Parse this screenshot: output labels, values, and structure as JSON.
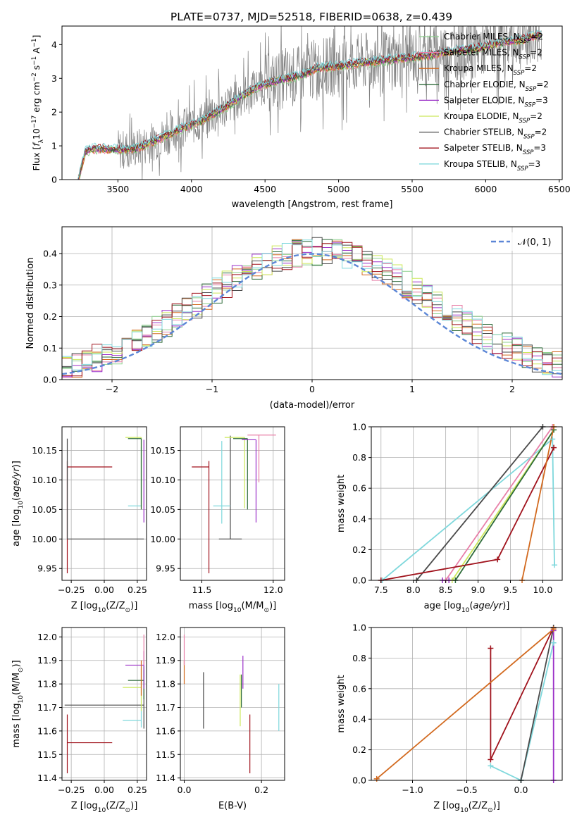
{
  "figure_title": "PLATE=0737, MJD=52518, FIBERID=0638, z=0.439",
  "colors": {
    "chabrier_miles": "#8fd18f",
    "salpeter_miles": "#e87fa8",
    "kroupa_miles": "#d2691e",
    "chabrier_elodie": "#2e6b3a",
    "salpeter_elodie": "#9b30c8",
    "kroupa_elodie": "#cce85a",
    "chabrier_stelib": "#4a4a4a",
    "salpeter_stelib": "#a0121c",
    "kroupa_stelib": "#7fd8dc",
    "data_spectrum": "#7f7f7f",
    "gaussian": "#5b86d6",
    "grid": "#b0b0b0"
  },
  "legend_spectrum": [
    {
      "key": "chabrier_miles",
      "label": "Chabrier MILES, N",
      "sub": "SSP",
      "tail": "=2"
    },
    {
      "key": "salpeter_miles",
      "label": "Salpeter MILES, N",
      "sub": "SSP",
      "tail": "=2"
    },
    {
      "key": "kroupa_miles",
      "label": "Kroupa MILES, N",
      "sub": "SSP",
      "tail": "=2"
    },
    {
      "key": "chabrier_elodie",
      "label": "Chabrier ELODIE, N",
      "sub": "SSP",
      "tail": "=2"
    },
    {
      "key": "salpeter_elodie",
      "label": "Salpeter ELODIE, N",
      "sub": "SSP",
      "tail": "=3"
    },
    {
      "key": "kroupa_elodie",
      "label": "Kroupa ELODIE, N",
      "sub": "SSP",
      "tail": "=2"
    },
    {
      "key": "chabrier_stelib",
      "label": "Chabrier STELIB, N",
      "sub": "SSP",
      "tail": "=2"
    },
    {
      "key": "salpeter_stelib",
      "label": "Salpeter STELIB, N",
      "sub": "SSP",
      "tail": "=3"
    },
    {
      "key": "kroupa_stelib",
      "label": "Kroupa STELIB, N",
      "sub": "SSP",
      "tail": "=3"
    }
  ],
  "legend_gauss": {
    "label": "𝒩(0, 1)"
  },
  "chart_data": [
    {
      "id": "spectrum",
      "type": "line",
      "xlabel": "wavelength [Angstrom, rest frame]",
      "ylabel_parts": [
        "Flux [",
        "f",
        "λ",
        "10",
        "−17",
        " erg cm",
        "−2",
        " s",
        "−1",
        " A",
        "−1",
        "]"
      ],
      "xlim": [
        3120,
        6520
      ],
      "ylim": [
        0,
        4.55
      ],
      "xticks": [
        3500,
        4000,
        4500,
        5000,
        5500,
        6000,
        6500
      ],
      "yticks": [
        0,
        1,
        2,
        3,
        4
      ],
      "model_continuum": {
        "x": [
          3230,
          3280,
          3350,
          3450,
          3550,
          3650,
          3750,
          3850,
          3950,
          4050,
          4150,
          4250,
          4350,
          4450,
          4550,
          4650,
          4750,
          4850,
          4950,
          5050,
          5150,
          5250,
          5350,
          5450,
          5550,
          5650,
          5750,
          5850,
          5950,
          6050,
          6150,
          6250,
          6380
        ],
        "y": [
          0.0,
          0.85,
          0.92,
          0.9,
          0.88,
          0.95,
          1.15,
          1.35,
          1.55,
          1.7,
          1.95,
          2.2,
          2.5,
          2.75,
          2.9,
          3.0,
          3.1,
          3.3,
          3.35,
          3.4,
          3.45,
          3.5,
          3.55,
          3.6,
          3.65,
          3.7,
          3.8,
          3.85,
          3.9,
          4.0,
          4.1,
          4.15,
          4.3
        ]
      }
    },
    {
      "id": "residuals",
      "type": "histogram",
      "xlabel": "(data-model)/error",
      "ylabel": "Normed distribution",
      "xlim": [
        -2.5,
        2.5
      ],
      "ylim": [
        0,
        0.485
      ],
      "xticks": [
        -2,
        -1,
        0,
        1,
        2
      ],
      "yticks": [
        0.0,
        0.1,
        0.2,
        0.3,
        0.4
      ],
      "bin_width": 0.1,
      "gaussian": {
        "mean": 0,
        "sigma": 1
      }
    },
    {
      "id": "age_vs_Z",
      "type": "scatter",
      "xlabel_parts": [
        "Z [log",
        "10",
        "(Z/Z",
        "⊙",
        ")]"
      ],
      "ylabel_parts": [
        "age  [log",
        "10",
        "(",
        "age/yr",
        ")]"
      ],
      "xlim": [
        -0.32,
        0.32
      ],
      "ylim": [
        9.93,
        10.19
      ],
      "xticks": [
        -0.25,
        0.0,
        0.25
      ],
      "xticklabels": [
        "−0.25",
        "0.00",
        "0.25"
      ],
      "yticks": [
        9.95,
        10.0,
        10.05,
        10.1,
        10.15
      ],
      "points": [
        {
          "key": "salpeter_stelib",
          "x": -0.28,
          "y": 10.122,
          "xerr": [
            0.0,
            0.34
          ],
          "yerr": [
            0.18,
            0.01
          ]
        },
        {
          "key": "chabrier_stelib",
          "x": -0.28,
          "y": 10.0,
          "xerr": [
            0.0,
            0.58
          ],
          "yerr": [
            0.0,
            0.17
          ]
        },
        {
          "key": "kroupa_stelib",
          "x": 0.28,
          "y": 10.056,
          "xerr": [
            0.1,
            0.0
          ],
          "yerr": [
            0.0,
            0.1
          ]
        },
        {
          "key": "kroupa_elodie",
          "x": 0.28,
          "y": 10.172,
          "xerr": [
            0.12,
            0.0
          ],
          "yerr": [
            0.12,
            0.0
          ]
        },
        {
          "key": "chabrier_elodie",
          "x": 0.28,
          "y": 10.17,
          "xerr": [
            0.1,
            0.0
          ],
          "yerr": [
            0.12,
            0.0
          ]
        },
        {
          "key": "salpeter_elodie",
          "x": 0.3,
          "y": 10.168,
          "xerr": [
            0.0,
            0.0
          ],
          "yerr": [
            0.14,
            0.0
          ]
        }
      ]
    },
    {
      "id": "age_vs_mass",
      "type": "scatter",
      "xlabel_parts": [
        "mass [log",
        "10",
        "(M/M",
        "⊙",
        ")]"
      ],
      "xlim": [
        11.35,
        12.08
      ],
      "ylim": [
        9.93,
        10.19
      ],
      "xticks": [
        11.5,
        12.0
      ],
      "xticklabels": [
        "11.5",
        "12.0"
      ],
      "yticks": [
        9.95,
        10.0,
        10.05,
        10.1,
        10.15
      ],
      "points": [
        {
          "key": "salpeter_stelib",
          "x": 11.55,
          "y": 10.122,
          "xerr": [
            0.12,
            0.0
          ],
          "yerr": [
            0.18,
            0.01
          ]
        },
        {
          "key": "chabrier_stelib",
          "x": 11.7,
          "y": 10.0,
          "xerr": [
            0.08,
            0.08
          ],
          "yerr": [
            0.0,
            0.175
          ]
        },
        {
          "key": "kroupa_stelib",
          "x": 11.64,
          "y": 10.056,
          "xerr": [
            0.06,
            0.06
          ],
          "yerr": [
            0.03,
            0.11
          ]
        },
        {
          "key": "kroupa_elodie",
          "x": 11.8,
          "y": 10.172,
          "xerr": [
            0.14,
            0.0
          ],
          "yerr": [
            0.12,
            0.0
          ]
        },
        {
          "key": "chabrier_elodie",
          "x": 11.82,
          "y": 10.17,
          "xerr": [
            0.1,
            0.0
          ],
          "yerr": [
            0.12,
            0.0
          ]
        },
        {
          "key": "salpeter_elodie",
          "x": 11.88,
          "y": 10.168,
          "xerr": [
            0.1,
            0.0
          ],
          "yerr": [
            0.14,
            0.0
          ]
        },
        {
          "key": "salpeter_miles",
          "x": 11.9,
          "y": 10.176,
          "xerr": [
            0.08,
            0.12
          ],
          "yerr": [
            0.08,
            0.0
          ]
        }
      ]
    },
    {
      "id": "weight_vs_age",
      "type": "line",
      "xlabel_parts": [
        "age  [log",
        "10",
        "(",
        "age/yr",
        ")]"
      ],
      "ylabel": "mass weight",
      "xlim": [
        7.35,
        10.3
      ],
      "ylim": [
        0,
        1.0
      ],
      "xticks": [
        7.5,
        8.0,
        8.5,
        9.0,
        9.5,
        10.0
      ],
      "yticks": [
        0.0,
        0.2,
        0.4,
        0.6,
        0.8,
        1.0
      ],
      "series": [
        {
          "key": "kroupa_stelib",
          "x": [
            7.52,
            10.15,
            10.18
          ],
          "y": [
            0.0,
            0.92,
            0.1
          ]
        },
        {
          "key": "chabrier_stelib",
          "x": [
            8.05,
            10.0
          ],
          "y": [
            0.0,
            1.0
          ]
        },
        {
          "key": "salpeter_miles",
          "x": [
            8.5,
            10.15
          ],
          "y": [
            0.0,
            1.0
          ]
        },
        {
          "key": "kroupa_elodie",
          "x": [
            8.6,
            10.17
          ],
          "y": [
            0.0,
            0.98
          ]
        },
        {
          "key": "chabrier_elodie",
          "x": [
            8.65,
            10.17
          ],
          "y": [
            0.0,
            0.98
          ]
        },
        {
          "key": "salpeter_elodie",
          "x": [
            8.45,
            8.55
          ],
          "y": [
            0.0,
            0.0
          ]
        },
        {
          "key": "salpeter_stelib",
          "x": [
            7.5,
            9.3,
            10.17
          ],
          "y": [
            0.0,
            0.136,
            0.864
          ]
        },
        {
          "key": "kroupa_miles",
          "x": [
            9.68,
            10.17
          ],
          "y": [
            0.0,
            1.0
          ]
        }
      ]
    },
    {
      "id": "mass_vs_Z",
      "type": "scatter",
      "xlabel_parts": [
        "Z [log",
        "10",
        "(Z/Z",
        "⊙",
        ")]"
      ],
      "ylabel_parts": [
        "mass [log",
        "10",
        "(M/M",
        "⊙",
        ")]"
      ],
      "xlim": [
        -0.32,
        0.32
      ],
      "ylim": [
        11.39,
        12.04
      ],
      "xticks": [
        -0.25,
        0.0,
        0.25
      ],
      "xticklabels": [
        "−0.25",
        "0.00",
        "0.25"
      ],
      "yticks": [
        11.4,
        11.5,
        11.6,
        11.7,
        11.8,
        11.9,
        12.0
      ],
      "points": [
        {
          "key": "salpeter_stelib",
          "x": -0.28,
          "y": 11.55,
          "xerr": [
            0.0,
            0.34
          ],
          "yerr": [
            0.13,
            0.12
          ]
        },
        {
          "key": "chabrier_stelib",
          "x": 0.3,
          "y": 11.71,
          "xerr": [
            0.6,
            0.0
          ],
          "yerr": [
            0.1,
            0.15
          ]
        },
        {
          "key": "kroupa_stelib",
          "x": 0.28,
          "y": 11.645,
          "xerr": [
            0.14,
            0.0
          ],
          "yerr": [
            0.03,
            0.06
          ]
        },
        {
          "key": "kroupa_elodie",
          "x": 0.28,
          "y": 11.785,
          "xerr": [
            0.14,
            0.0
          ],
          "yerr": [
            0.1,
            0.08
          ]
        },
        {
          "key": "chabrier_elodie",
          "x": 0.3,
          "y": 11.815,
          "xerr": [
            0.12,
            0.0
          ],
          "yerr": [
            0.08,
            0.06
          ]
        },
        {
          "key": "salpeter_elodie",
          "x": 0.3,
          "y": 11.88,
          "xerr": [
            0.14,
            0.0
          ],
          "yerr": [
            0.1,
            0.06
          ]
        },
        {
          "key": "salpeter_miles",
          "x": 0.3,
          "y": 11.93,
          "xerr": [
            0.0,
            0.0
          ],
          "yerr": [
            0.05,
            0.08
          ]
        },
        {
          "key": "kroupa_miles",
          "x": 0.28,
          "y": 11.85,
          "xerr": [
            0.0,
            0.0
          ],
          "yerr": [
            0.1,
            0.05
          ]
        }
      ]
    },
    {
      "id": "mass_vs_EBV",
      "type": "scatter",
      "xlabel": "E(B-V)",
      "xlim": [
        -0.01,
        0.26
      ],
      "ylim": [
        11.39,
        12.04
      ],
      "xticks": [
        0.0,
        0.2
      ],
      "xticklabels": [
        "0.0",
        "0.2"
      ],
      "yticks": [
        11.4,
        11.5,
        11.6,
        11.7,
        11.8,
        11.9,
        12.0
      ],
      "points": [
        {
          "key": "kroupa_miles",
          "x": 0.0,
          "y": 11.85,
          "xerr": [
            0.0,
            0.0
          ],
          "yerr": [
            0.05,
            0.05
          ]
        },
        {
          "key": "salpeter_miles",
          "x": 0.0,
          "y": 11.93,
          "xerr": [
            0.0,
            0.0
          ],
          "yerr": [
            0.05,
            0.08
          ]
        },
        {
          "key": "chabrier_stelib",
          "x": 0.05,
          "y": 11.73,
          "xerr": [
            0.0,
            0.0
          ],
          "yerr": [
            0.12,
            0.12
          ]
        },
        {
          "key": "kroupa_elodie",
          "x": 0.145,
          "y": 11.7,
          "xerr": [
            0.0,
            0.0
          ],
          "yerr": [
            0.08,
            0.14
          ]
        },
        {
          "key": "chabrier_elodie",
          "x": 0.148,
          "y": 11.77,
          "xerr": [
            0.0,
            0.0
          ],
          "yerr": [
            0.07,
            0.07
          ]
        },
        {
          "key": "salpeter_elodie",
          "x": 0.152,
          "y": 11.85,
          "xerr": [
            0.0,
            0.0
          ],
          "yerr": [
            0.07,
            0.07
          ]
        },
        {
          "key": "salpeter_stelib",
          "x": 0.17,
          "y": 11.55,
          "xerr": [
            0.0,
            0.0
          ],
          "yerr": [
            0.13,
            0.12
          ]
        },
        {
          "key": "kroupa_stelib",
          "x": 0.245,
          "y": 11.7,
          "xerr": [
            0.0,
            0.0
          ],
          "yerr": [
            0.1,
            0.1
          ]
        }
      ]
    },
    {
      "id": "weight_vs_Z",
      "type": "line",
      "xlabel_parts": [
        "Z [log",
        "10",
        "(Z/Z",
        "⊙",
        ")]"
      ],
      "ylabel": "mass weight",
      "xlim": [
        -1.38,
        0.38
      ],
      "ylim": [
        0,
        1.0
      ],
      "xticks": [
        -1.0,
        -0.5,
        0.0
      ],
      "xticklabels": [
        "−1.0",
        "−0.5",
        "0.0"
      ],
      "yticks": [
        0.0,
        0.2,
        0.4,
        0.6,
        0.8,
        1.0
      ],
      "series": [
        {
          "key": "salpeter_stelib",
          "x": [
            -0.28,
            -0.28,
            0.3
          ],
          "y": [
            0.864,
            0.136,
            1.0
          ]
        },
        {
          "key": "kroupa_stelib",
          "x": [
            -0.28,
            0.0,
            0.3
          ],
          "y": [
            0.095,
            0.0,
            0.9
          ]
        },
        {
          "key": "chabrier_stelib",
          "x": [
            0.0,
            0.3
          ],
          "y": [
            0.0,
            1.0
          ]
        },
        {
          "key": "salpeter_elodie",
          "x": [
            0.3,
            0.3
          ],
          "y": [
            0.0,
            0.98
          ]
        },
        {
          "key": "kroupa_miles",
          "x": [
            -1.33,
            0.3
          ],
          "y": [
            0.01,
            0.99
          ]
        }
      ]
    }
  ]
}
